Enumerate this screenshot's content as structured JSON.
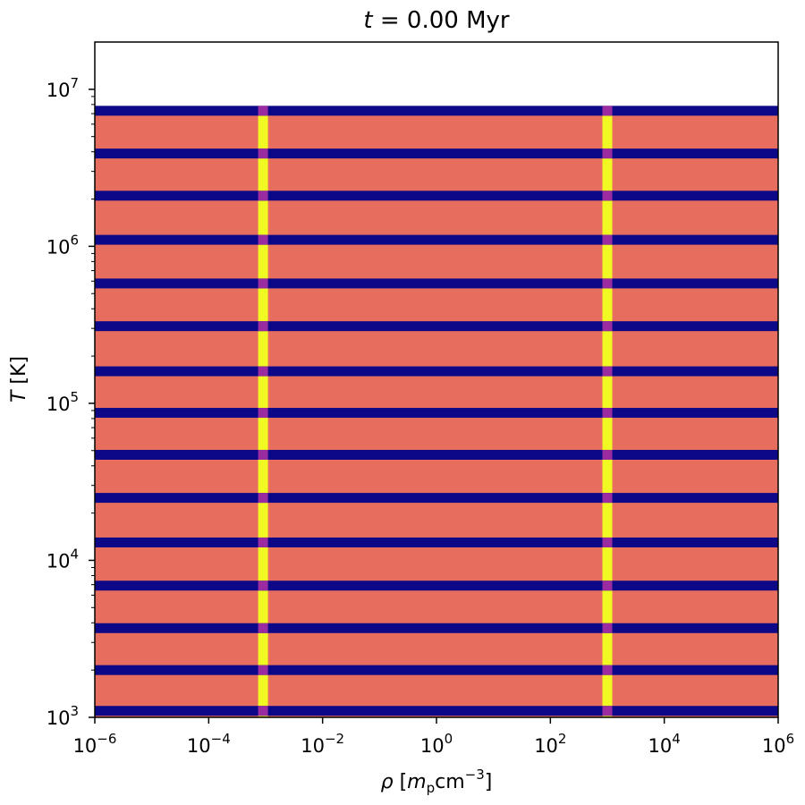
{
  "chart_data": {
    "type": "heatmap",
    "title": {
      "prefix": "t",
      "value": "0.00",
      "unit": "Myr"
    },
    "xlabel": {
      "symbol": "ρ",
      "unit_prefix": "m",
      "unit_sub": "p",
      "unit_main": "cm",
      "unit_exp": "−3"
    },
    "ylabel": {
      "symbol": "T",
      "unit": "K"
    },
    "x_scale": "log",
    "y_scale": "log",
    "xlim": [
      1e-06,
      1000000.0
    ],
    "ylim": [
      1000,
      20000000
    ],
    "x_ticks": [
      {
        "base": "10",
        "exp": "−6",
        "value": 1e-06
      },
      {
        "base": "10",
        "exp": "−4",
        "value": 0.0001
      },
      {
        "base": "10",
        "exp": "−2",
        "value": 0.01
      },
      {
        "base": "10",
        "exp": "0",
        "value": 1
      },
      {
        "base": "10",
        "exp": "2",
        "value": 100
      },
      {
        "base": "10",
        "exp": "4",
        "value": 10000
      },
      {
        "base": "10",
        "exp": "6",
        "value": 1000000
      }
    ],
    "y_ticks": [
      {
        "base": "10",
        "exp": "3",
        "value": 1000
      },
      {
        "base": "10",
        "exp": "4",
        "value": 10000
      },
      {
        "base": "10",
        "exp": "5",
        "value": 100000
      },
      {
        "base": "10",
        "exp": "6",
        "value": 1000000
      },
      {
        "base": "10",
        "exp": "7",
        "value": 10000000
      }
    ],
    "fill_range_T": [
      1000,
      7700000
    ],
    "band_T": [
      1100,
      2000,
      3700,
      6900,
      13000,
      25000,
      47000,
      87000,
      160000,
      310000,
      580000,
      1100000,
      2100000,
      3900000,
      7300000
    ],
    "stripe_rho": [
      0.0009,
      1000
    ],
    "colors": {
      "background": "#e76e5e",
      "band": "#0d0887",
      "stripe": "#f0f921",
      "intersection": "#9a2ba0"
    }
  }
}
